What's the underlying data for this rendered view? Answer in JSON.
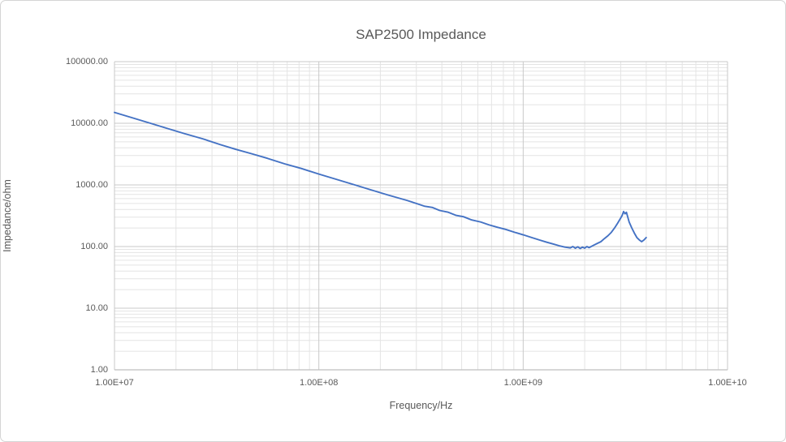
{
  "chart": {
    "title": "SAP2500 Impedance",
    "xlabel": "Frequency/Hz",
    "ylabel": "Impedance/ohm"
  },
  "chart_data": {
    "type": "line",
    "title": "SAP2500 Impedance",
    "xlabel": "Frequency/Hz",
    "ylabel": "Impedance/ohm",
    "x_scale": "log",
    "y_scale": "log",
    "xlim": [
      10000000.0,
      10000000000.0
    ],
    "ylim": [
      1,
      100000
    ],
    "x_tick_labels": [
      "1.00E+07",
      "1.00E+08",
      "1.00E+09",
      "1.00E+10"
    ],
    "y_tick_labels": [
      "1.00",
      "10.00",
      "100.00",
      "1000.00",
      "10000.00",
      "100000.00"
    ],
    "grid": true,
    "legend": false,
    "line_color": "#4472C4",
    "major_grid_color": "#c9c9c9",
    "minor_grid_color": "#e4e4e4",
    "series": [
      {
        "name": "Impedance",
        "x": [
          10000000.0,
          12000000.0,
          15000000.0,
          18000000.0,
          22000000.0,
          27000000.0,
          33000000.0,
          39000000.0,
          47000000.0,
          56000000.0,
          68000000.0,
          82000000.0,
          100000000.0,
          120000000.0,
          150000000.0,
          180000000.0,
          220000000.0,
          270000000.0,
          300000000.0,
          330000000.0,
          360000000.0,
          390000000.0,
          430000000.0,
          470000000.0,
          510000000.0,
          560000000.0,
          620000000.0,
          680000000.0,
          750000000.0,
          820000000.0,
          910000000.0,
          1000000000.0,
          1100000000.0,
          1200000000.0,
          1300000000.0,
          1400000000.0,
          1500000000.0,
          1600000000.0,
          1700000000.0,
          1750000000.0,
          1800000000.0,
          1850000000.0,
          1900000000.0,
          1950000000.0,
          2000000000.0,
          2050000000.0,
          2100000000.0,
          2200000000.0,
          2300000000.0,
          2400000000.0,
          2500000000.0,
          2600000000.0,
          2700000000.0,
          2800000000.0,
          2900000000.0,
          3000000000.0,
          3050000000.0,
          3100000000.0,
          3150000000.0,
          3200000000.0,
          3250000000.0,
          3300000000.0,
          3400000000.0,
          3500000000.0,
          3600000000.0,
          3700000000.0,
          3800000000.0,
          3900000000.0,
          4000000000.0
        ],
        "y": [
          15000,
          12500,
          10000,
          8300,
          6800,
          5600,
          4500,
          3800,
          3200,
          2700,
          2200,
          1850,
          1500,
          1250,
          1000,
          830,
          680,
          560,
          500,
          450,
          430,
          385,
          360,
          320,
          305,
          270,
          250,
          225,
          205,
          190,
          170,
          155,
          140,
          128,
          118,
          110,
          103,
          98,
          95,
          100,
          94,
          99,
          93,
          98,
          94,
          100,
          96,
          104,
          112,
          120,
          135,
          150,
          170,
          200,
          240,
          290,
          320,
          370,
          340,
          360,
          300,
          250,
          200,
          165,
          140,
          128,
          120,
          128,
          140
        ]
      }
    ]
  }
}
